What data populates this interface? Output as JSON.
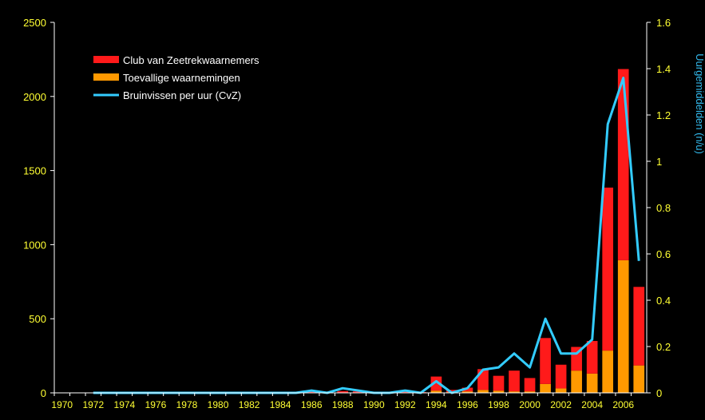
{
  "chart_data": {
    "type": "bar",
    "stacked": true,
    "title": "",
    "xlabel": "",
    "ylabel": "",
    "ylabel_right": "Uurgemiddelden (n/u)",
    "ylim": [
      0,
      2500
    ],
    "ylim_right": [
      0,
      1.6
    ],
    "yticks": [
      "0",
      "500",
      "1000",
      "1500",
      "2000",
      "2500"
    ],
    "yticks_right": [
      "0",
      "0.2",
      "0.4",
      "0.6",
      "0.8",
      "1",
      "1.2",
      "1.4",
      "1.6"
    ],
    "categories": [
      "1970",
      "1971",
      "1972",
      "1973",
      "1974",
      "1975",
      "1976",
      "1977",
      "1978",
      "1979",
      "1980",
      "1981",
      "1982",
      "1983",
      "1984",
      "1985",
      "1986",
      "1987",
      "1988",
      "1989",
      "1990",
      "1991",
      "1992",
      "1993",
      "1994",
      "1995",
      "1996",
      "1997",
      "1998",
      "1999",
      "2000",
      "2001",
      "2002",
      "2003",
      "2004",
      "2005",
      "2006",
      "2007"
    ],
    "xtick_labels": [
      "1970",
      "1972",
      "1974",
      "1976",
      "1978",
      "1980",
      "1982",
      "1984",
      "1986",
      "1988",
      "1990",
      "1992",
      "1994",
      "1996",
      "1998",
      "2000",
      "2002",
      "2004",
      "2006"
    ],
    "legend_position": "top-left",
    "series": [
      {
        "name": "Club van Zeetrekwaarnemers",
        "color": "#ff1a1a",
        "axis": "left",
        "kind": "bar",
        "values": [
          0,
          0,
          2,
          2,
          2,
          2,
          2,
          2,
          2,
          2,
          2,
          4,
          4,
          2,
          2,
          2,
          10,
          5,
          12,
          10,
          4,
          4,
          8,
          5,
          95,
          15,
          25,
          140,
          100,
          140,
          90,
          310,
          160,
          160,
          220,
          1100,
          1290,
          530
        ]
      },
      {
        "name": "Toevallige waarnemingen",
        "color": "#ff9900",
        "axis": "left",
        "kind": "bar",
        "values": [
          0,
          0,
          0,
          0,
          0,
          0,
          0,
          0,
          0,
          0,
          0,
          0,
          0,
          0,
          0,
          0,
          0,
          0,
          0,
          0,
          0,
          0,
          0,
          0,
          15,
          5,
          10,
          20,
          15,
          10,
          10,
          60,
          30,
          150,
          130,
          285,
          895,
          185
        ]
      },
      {
        "name": "Bruinvissen per uur (CvZ)",
        "color": "#33ccff",
        "axis": "right",
        "kind": "line",
        "values": [
          null,
          null,
          0,
          0,
          0,
          0,
          0,
          0,
          0,
          0,
          0,
          0,
          0,
          0,
          0,
          0,
          0.01,
          0,
          0.02,
          0.01,
          0,
          0,
          0.01,
          0,
          0.05,
          0,
          0.02,
          0.1,
          0.11,
          0.17,
          0.11,
          0.32,
          0.17,
          0.17,
          0.23,
          1.16,
          1.36,
          0.57
        ]
      }
    ]
  }
}
